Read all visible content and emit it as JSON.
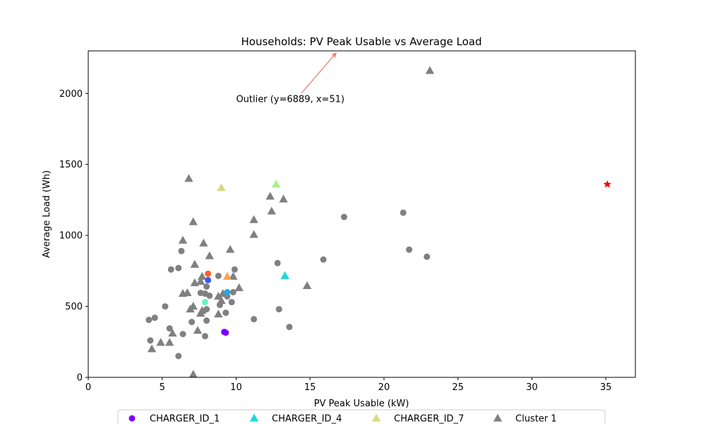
{
  "chart_data": {
    "type": "scatter",
    "title": "Households: PV Peak Usable vs Average Load",
    "xlabel": "PV Peak Usable (kW)",
    "ylabel": "Average Load (Wh)",
    "xlim": [
      0,
      37
    ],
    "ylim": [
      0,
      2300
    ],
    "xticks": [
      0,
      5,
      10,
      15,
      20,
      25,
      30,
      35
    ],
    "yticks": [
      0,
      500,
      1000,
      1500,
      2000
    ],
    "grid": false,
    "legend_position": "bottom-center",
    "annotation": {
      "text": "Outlier (y=6889, x=51)",
      "text_at": [
        10.0,
        1940
      ],
      "arrow_from": [
        14.4,
        2000
      ],
      "arrow_to": [
        16.8,
        2290
      ],
      "color": "#f08080"
    },
    "outlier_marker": {
      "x": 35.1,
      "y": 1360,
      "shape": "star",
      "color": "#ff0000"
    },
    "legend": [
      {
        "label": "CHARGER_ID_1",
        "shape": "circle",
        "color": "#8000ff"
      },
      {
        "label": "CHARGER_ID_4",
        "shape": "triangle",
        "color": "#1fd8d8"
      },
      {
        "label": "CHARGER_ID_7",
        "shape": "triangle",
        "color": "#d4dc7f"
      },
      {
        "label": "Cluster 1",
        "shape": "triangle",
        "color": "#808080"
      }
    ],
    "series": [
      {
        "shape": "circle",
        "color": "#808080",
        "points": [
          [
            4.1,
            405
          ],
          [
            4.5,
            420
          ],
          [
            4.2,
            260
          ],
          [
            5.2,
            500
          ],
          [
            5.5,
            345
          ],
          [
            5.6,
            760
          ],
          [
            6.1,
            770
          ],
          [
            6.3,
            890
          ],
          [
            6.1,
            150
          ],
          [
            6.4,
            305
          ],
          [
            7.0,
            390
          ],
          [
            7.6,
            595
          ],
          [
            7.9,
            590
          ],
          [
            8.0,
            480
          ],
          [
            8.0,
            400
          ],
          [
            8.0,
            640
          ],
          [
            8.2,
            575
          ],
          [
            7.9,
            290
          ],
          [
            8.8,
            715
          ],
          [
            8.9,
            510
          ],
          [
            9.3,
            455
          ],
          [
            9.2,
            320
          ],
          [
            9.4,
            570
          ],
          [
            9.7,
            530
          ],
          [
            9.8,
            600
          ],
          [
            9.9,
            760
          ],
          [
            11.2,
            410
          ],
          [
            12.8,
            805
          ],
          [
            12.9,
            480
          ],
          [
            13.6,
            355
          ],
          [
            15.9,
            830
          ],
          [
            17.3,
            1130
          ],
          [
            21.3,
            1160
          ],
          [
            21.7,
            900
          ],
          [
            22.9,
            850
          ]
        ]
      },
      {
        "shape": "triangle",
        "color": "#808080",
        "points": [
          [
            4.3,
            200
          ],
          [
            4.9,
            245
          ],
          [
            5.5,
            245
          ],
          [
            5.7,
            310
          ],
          [
            6.4,
            590
          ],
          [
            6.4,
            965
          ],
          [
            6.7,
            595
          ],
          [
            6.8,
            1400
          ],
          [
            6.9,
            480
          ],
          [
            7.1,
            500
          ],
          [
            7.1,
            1095
          ],
          [
            7.2,
            795
          ],
          [
            7.2,
            665
          ],
          [
            7.4,
            330
          ],
          [
            7.6,
            675
          ],
          [
            7.6,
            450
          ],
          [
            7.7,
            710
          ],
          [
            7.7,
            470
          ],
          [
            7.8,
            945
          ],
          [
            8.2,
            855
          ],
          [
            8.8,
            570
          ],
          [
            8.8,
            445
          ],
          [
            9.0,
            540
          ],
          [
            9.1,
            590
          ],
          [
            9.6,
            900
          ],
          [
            9.8,
            710
          ],
          [
            10.2,
            630
          ],
          [
            11.2,
            1110
          ],
          [
            11.2,
            1005
          ],
          [
            12.3,
            1275
          ],
          [
            12.4,
            1170
          ],
          [
            13.2,
            1255
          ],
          [
            14.8,
            645
          ],
          [
            23.1,
            2160
          ],
          [
            7.1,
            20
          ]
        ]
      },
      {
        "shape": "circle",
        "color": "#8000ff",
        "points": [
          [
            9.3,
            315
          ],
          [
            9.2,
            320
          ]
        ]
      },
      {
        "shape": "circle",
        "color": "#3b5bf0",
        "points": [
          [
            8.1,
            685
          ]
        ]
      },
      {
        "shape": "circle",
        "color": "#1ea8e8",
        "points": [
          [
            9.4,
            600
          ]
        ]
      },
      {
        "shape": "circle",
        "color": "#66f2c4",
        "points": [
          [
            7.9,
            530
          ]
        ]
      },
      {
        "shape": "circle",
        "color": "#ff5e2e",
        "points": [
          [
            8.1,
            730
          ]
        ]
      },
      {
        "shape": "triangle",
        "color": "#1fd8d8",
        "points": [
          [
            13.3,
            715
          ]
        ]
      },
      {
        "shape": "triangle",
        "color": "#a8f08c",
        "points": [
          [
            12.7,
            1360
          ]
        ]
      },
      {
        "shape": "triangle",
        "color": "#d4dc7f",
        "points": [
          [
            9.0,
            1335
          ]
        ]
      },
      {
        "shape": "triangle",
        "color": "#ffa256",
        "points": [
          [
            9.4,
            710
          ]
        ]
      }
    ]
  }
}
